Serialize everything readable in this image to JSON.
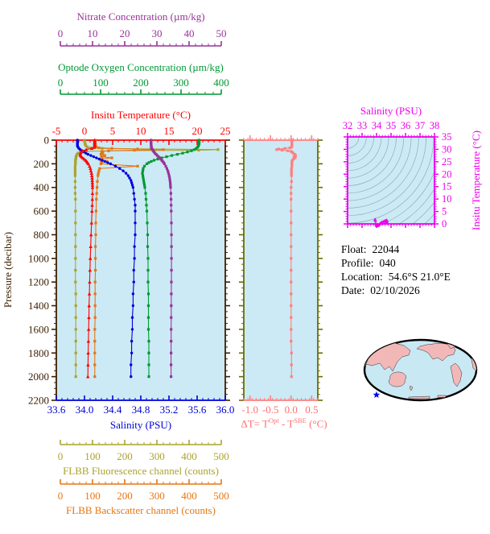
{
  "colors": {
    "plot_bg": "#CBEAF5",
    "pressure_axis": "#3D1F00",
    "nitrate": "#993399",
    "oxygen": "#009933",
    "temperature": "#FF0000",
    "salinity": "#0000DD",
    "fluorescence": "#ABA32E",
    "backscatter": "#E87511",
    "delta": "#FF7F7F",
    "delta_frame_sides": "#6B6B00",
    "ts_axis": "#EE00EE",
    "ts_contour": "#9AA8B4",
    "map_land": "#F2B8B8",
    "map_ocean": "#C8E8F4",
    "map_outline": "#000000",
    "map_marker": "#0000FF"
  },
  "axes": {
    "pressure": {
      "title": "Pressure (decibar)",
      "min": 0,
      "max": 2200,
      "tick_values": [
        0,
        200,
        400,
        600,
        800,
        1000,
        1200,
        1400,
        1600,
        1800,
        2000,
        2200
      ],
      "tick_labels": [
        "0",
        "200",
        "400",
        "600",
        "800",
        "1000",
        "1200",
        "1400",
        "1600",
        "1800",
        "2000",
        "2200"
      ],
      "minor_step": 50
    },
    "nitrate": {
      "title": "Nitrate Concentration (µm/kg)",
      "min": 0,
      "max": 50,
      "tick_values": [
        0,
        10,
        20,
        30,
        40,
        50
      ],
      "tick_labels": [
        "0",
        "10",
        "20",
        "30",
        "40",
        "50"
      ],
      "minor_step": 2
    },
    "oxygen": {
      "title": "Optode Oxygen Concentration (µm/kg)",
      "min": 0,
      "max": 400,
      "tick_values": [
        0,
        100,
        200,
        300,
        400
      ],
      "tick_labels": [
        "0",
        "100",
        "200",
        "300",
        "400"
      ],
      "minor_step": 20
    },
    "temperature": {
      "title": "Insitu Temperature (°C)",
      "min": -5,
      "max": 25,
      "tick_values": [
        -5,
        0,
        5,
        10,
        15,
        20,
        25
      ],
      "tick_labels": [
        "-5",
        "0",
        "5",
        "10",
        "15",
        "20",
        "25"
      ],
      "minor_step": 1
    },
    "salinity": {
      "title": "Salinity (PSU)",
      "min": 33.6,
      "max": 36.0,
      "tick_values": [
        33.6,
        34.0,
        34.4,
        34.8,
        35.2,
        35.6,
        36.0
      ],
      "tick_labels": [
        "33.6",
        "34.0",
        "34.4",
        "34.8",
        "35.2",
        "35.6",
        "36.0"
      ],
      "minor_step": 0.08
    },
    "fluorescence": {
      "title": "FLBB Fluorescence channel (counts)",
      "min": 0,
      "max": 500,
      "tick_values": [
        0,
        100,
        200,
        300,
        400,
        500
      ],
      "tick_labels": [
        "0",
        "100",
        "200",
        "300",
        "400",
        "500"
      ],
      "minor_step": 20
    },
    "backscatter": {
      "title": "FLBB Backscatter channel (counts)",
      "min": 0,
      "max": 500,
      "tick_values": [
        0,
        100,
        200,
        300,
        400,
        500
      ],
      "tick_labels": [
        "0",
        "100",
        "200",
        "300",
        "400",
        "500"
      ],
      "minor_step": 20
    },
    "delta_t": {
      "min": -1.15,
      "max": 0.65,
      "tick_values": [
        -1.0,
        -0.5,
        0.0,
        0.5
      ],
      "tick_labels": [
        "-1.0",
        "-0.5",
        "0.0",
        "0.5"
      ],
      "minor_step": 0.1
    },
    "ts_salinity": {
      "title": "Salinity (PSU)",
      "min": 32,
      "max": 38,
      "tick_values": [
        32,
        33,
        34,
        35,
        36,
        37,
        38
      ],
      "tick_labels": [
        "32",
        "33",
        "34",
        "35",
        "36",
        "37",
        "38"
      ],
      "minor_step": 0.2
    },
    "ts_temperature": {
      "title": "Insitu Temperature (°C)",
      "min": 0,
      "max": 35,
      "tick_values": [
        0,
        5,
        10,
        15,
        20,
        25,
        30,
        35
      ],
      "tick_labels": [
        "0",
        "5",
        "10",
        "15",
        "20",
        "25",
        "30",
        "35"
      ],
      "minor_step": 1
    }
  },
  "delta_panel": {
    "title": {
      "prefix": "ΔT= T",
      "sup1": "Opt",
      "mid": " - T",
      "sup2": "SBE",
      "suffix": " (°C)"
    }
  },
  "float_info": {
    "lines": [
      {
        "label": "Float:",
        "value": "22044"
      },
      {
        "label": "Profile:",
        "value": "040"
      },
      {
        "label": "Location:",
        "value": "54.6°S  21.0°E"
      },
      {
        "label": "Date:",
        "value": "02/10/2026"
      }
    ]
  },
  "map": {
    "marker_rel": [
      0.113,
      0.9
    ]
  },
  "chart_data": {
    "type": "line",
    "description": "Argo-style float profile plots: six profiles vs pressure, a temperature-difference profile, a T-S diagram with isopycnal contours, and a float-location world map",
    "pressure_grid": [
      0,
      10,
      20,
      30,
      40,
      50,
      60,
      70,
      80,
      90,
      100,
      110,
      120,
      130,
      140,
      150,
      160,
      170,
      180,
      190,
      200,
      220,
      240,
      260,
      280,
      300,
      320,
      340,
      360,
      380,
      400,
      450,
      500,
      550,
      600,
      700,
      800,
      900,
      1000,
      1100,
      1200,
      1300,
      1400,
      1500,
      1600,
      1700,
      1800,
      1900,
      2000
    ],
    "series": [
      {
        "id": "fluorescence",
        "axis": "fluorescence",
        "marker": "square",
        "p": [
          0,
          10,
          20,
          30,
          40,
          50,
          60,
          65,
          70,
          75,
          80,
          85,
          90,
          95,
          100,
          110,
          120,
          130,
          140,
          150,
          160,
          170,
          180,
          190,
          200,
          220,
          240,
          260,
          280,
          300,
          350,
          400,
          450,
          500,
          600,
          700,
          800,
          900,
          1000,
          1100,
          1200,
          1300,
          1400,
          1500,
          1600,
          1700,
          1800,
          1900,
          2000
        ],
        "v": [
          75,
          75,
          76,
          77,
          78,
          80,
          85,
          95,
          130,
          280,
          490,
          430,
          150,
          80,
          62,
          55,
          52,
          50,
          49,
          48,
          48,
          47,
          47,
          47,
          47,
          46,
          46,
          46,
          46,
          46,
          46,
          46,
          46,
          47,
          47,
          47,
          47,
          47,
          47,
          47,
          47,
          48,
          48,
          48,
          48,
          48,
          48,
          48,
          48
        ]
      },
      {
        "id": "backscatter",
        "axis": "backscatter",
        "marker": "square",
        "p": [
          0,
          10,
          20,
          30,
          40,
          50,
          60,
          65,
          70,
          75,
          80,
          85,
          90,
          95,
          100,
          110,
          120,
          130,
          140,
          150,
          160,
          170,
          180,
          190,
          200,
          220,
          240,
          260,
          280,
          300,
          350,
          400,
          450,
          500,
          600,
          700,
          800,
          900,
          1000,
          1100,
          1200,
          1300,
          1400,
          1500,
          1600,
          1700,
          1800,
          1900,
          2000
        ],
        "v": [
          108,
          108,
          108,
          109,
          109,
          110,
          112,
          120,
          160,
          240,
          320,
          230,
          150,
          130,
          128,
          132,
          126,
          138,
          128,
          160,
          130,
          126,
          145,
          128,
          126,
          240,
          122,
          120,
          118,
          117,
          115,
          114,
          113,
          112,
          111,
          110,
          110,
          109,
          109,
          109,
          108,
          108,
          108,
          108,
          107,
          107,
          107,
          107,
          107
        ]
      },
      {
        "id": "salinity",
        "axis": "salinity",
        "marker": "circle",
        "v": [
          33.9,
          33.9,
          33.9,
          33.9,
          33.9,
          33.9,
          33.91,
          33.92,
          33.94,
          33.96,
          33.99,
          34.02,
          34.05,
          34.09,
          34.13,
          34.17,
          34.21,
          34.25,
          34.29,
          34.33,
          34.37,
          34.44,
          34.5,
          34.55,
          34.59,
          34.62,
          34.64,
          34.66,
          34.67,
          34.68,
          34.69,
          34.7,
          34.71,
          34.72,
          34.72,
          34.72,
          34.72,
          34.71,
          34.71,
          34.7,
          34.7,
          34.69,
          34.69,
          34.68,
          34.68,
          34.67,
          34.67,
          34.66,
          34.66
        ]
      },
      {
        "id": "oxygen",
        "axis": "oxygen",
        "marker": "square",
        "v": [
          345,
          345,
          345,
          345,
          344,
          343,
          341,
          338,
          333,
          326,
          316,
          304,
          291,
          277,
          264,
          252,
          242,
          233,
          226,
          220,
          215,
          209,
          206,
          205,
          204,
          205,
          206,
          207,
          208,
          209,
          210,
          212,
          213,
          214,
          215,
          216,
          217,
          217,
          218,
          218,
          218,
          219,
          219,
          219,
          219,
          220,
          220,
          220,
          220
        ]
      },
      {
        "id": "nitrate",
        "axis": "nitrate",
        "marker": "square",
        "v": [
          28.2,
          28.2,
          28.2,
          28.2,
          28.2,
          28.25,
          28.3,
          28.4,
          28.6,
          28.85,
          29.1,
          29.4,
          29.75,
          30.1,
          30.5,
          30.85,
          31.2,
          31.5,
          31.8,
          32.1,
          32.35,
          32.75,
          33.1,
          33.4,
          33.6,
          33.8,
          33.95,
          34.05,
          34.15,
          34.2,
          34.25,
          34.35,
          34.4,
          34.42,
          34.45,
          34.5,
          34.52,
          34.53,
          34.53,
          34.52,
          34.5,
          34.48,
          34.46,
          34.44,
          34.43,
          34.42,
          34.41,
          34.4,
          34.4
        ]
      },
      {
        "id": "temperature",
        "axis": "temperature",
        "marker": "triangle",
        "v": [
          1.8,
          1.8,
          1.8,
          1.8,
          1.79,
          1.78,
          1.75,
          1.3,
          0.3,
          -0.3,
          -0.6,
          -0.72,
          -0.75,
          -0.7,
          -0.55,
          -0.3,
          -0.05,
          0.2,
          0.4,
          0.55,
          0.7,
          0.9,
          1.05,
          1.15,
          1.25,
          1.3,
          1.35,
          1.38,
          1.4,
          1.42,
          1.43,
          1.42,
          1.4,
          1.37,
          1.33,
          1.25,
          1.17,
          1.1,
          1.03,
          0.97,
          0.92,
          0.87,
          0.82,
          0.78,
          0.74,
          0.7,
          0.66,
          0.63,
          0.6
        ]
      },
      {
        "id": "delta_t",
        "axis": "delta_t",
        "marker": "square",
        "p": [
          0,
          10,
          20,
          30,
          40,
          50,
          60,
          65,
          70,
          75,
          80,
          85,
          90,
          95,
          100,
          110,
          120,
          130,
          140,
          150,
          160,
          170,
          180,
          190,
          200,
          220,
          240,
          260,
          280,
          300,
          350,
          400,
          450,
          500,
          600,
          700,
          800,
          900,
          1000,
          1100,
          1200,
          1300,
          1400,
          1500,
          1600,
          1700,
          1800,
          1900,
          2000
        ],
        "v": [
          0.02,
          0.02,
          0.02,
          0.02,
          0.02,
          0.02,
          0.01,
          -0.03,
          -0.15,
          -0.3,
          -0.35,
          -0.22,
          -0.08,
          0,
          0.02,
          0.05,
          0.09,
          0.11,
          0.07,
          0.1,
          0.06,
          0.03,
          0.02,
          0.02,
          0.02,
          0.02,
          0.01,
          0.01,
          0.01,
          0.01,
          0.01,
          0,
          0,
          0,
          0,
          0,
          0,
          0,
          0,
          0,
          0,
          0,
          0,
          0,
          0,
          0,
          0.01,
          0.01,
          0.01
        ]
      }
    ],
    "ts_diagram": {
      "note": "T-S points derived from salinity and temperature series on pressure_grid",
      "contour_count": 16
    }
  }
}
